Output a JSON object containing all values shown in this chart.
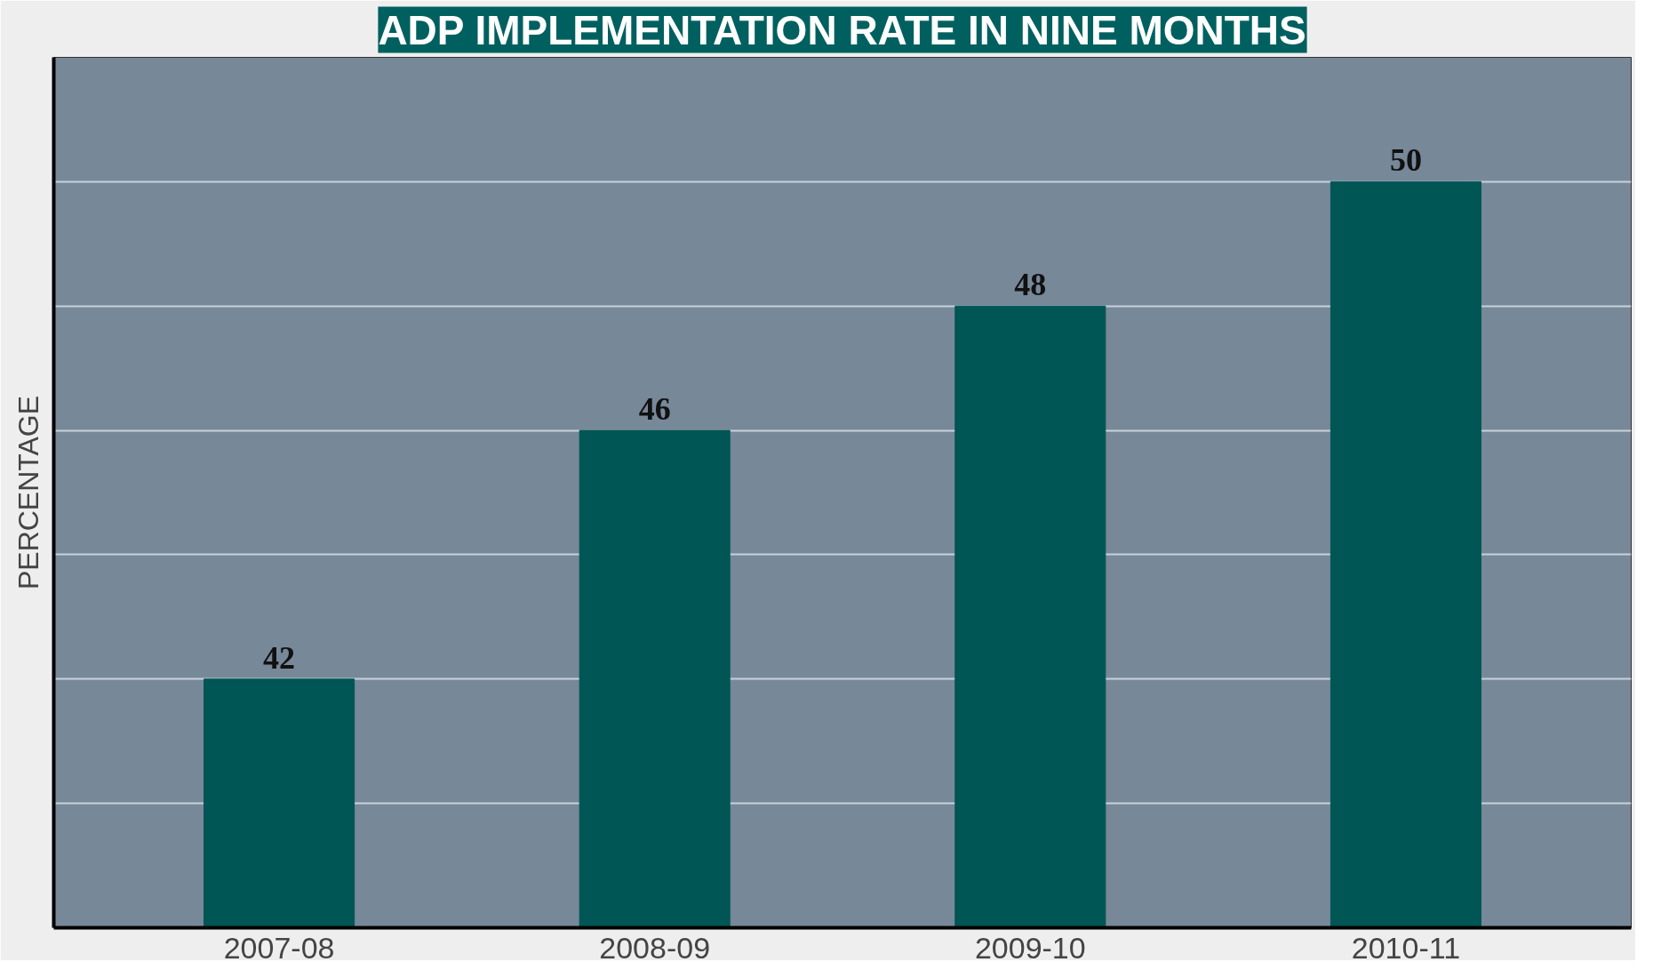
{
  "chart_data": {
    "type": "bar",
    "title": "ADP IMPLEMENTATION RATE IN NINE MONTHS",
    "ylabel": "PERCENTAGE",
    "categories": [
      "2007-08",
      "2008-09",
      "2009-10",
      "2010-11"
    ],
    "values": [
      42,
      46,
      48,
      50
    ],
    "color": "#005555",
    "data_labels": true,
    "ylim": [
      38,
      52
    ],
    "yticks": [
      {
        "value": 40,
        "label": null
      },
      {
        "value": 42,
        "label": null
      },
      {
        "value": 44,
        "label": null
      },
      {
        "value": 46,
        "label": null
      },
      {
        "value": 48,
        "label": null
      },
      {
        "value": 50,
        "label": null
      }
    ],
    "tick_labels": "x",
    "grid": "y"
  }
}
